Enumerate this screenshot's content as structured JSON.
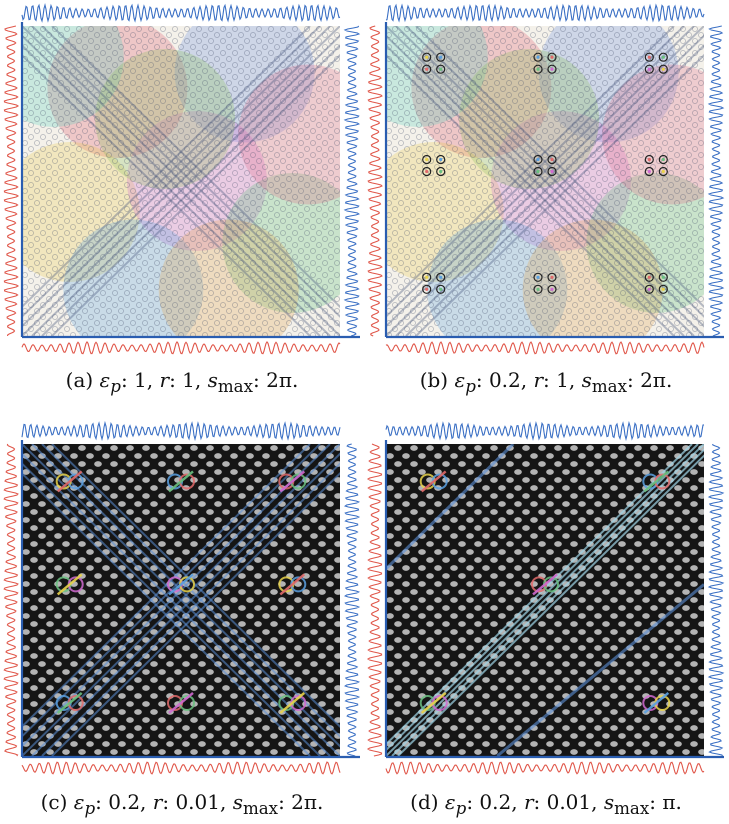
{
  "figure": {
    "panels": [
      {
        "id": "a",
        "style": "color",
        "caption": {
          "prefix": "(a) ",
          "eps_label": "ε",
          "eps_sub": "p",
          "eps_value": ": 1, ",
          "r_label": "r",
          "r_value": ": 1, ",
          "s_label": "s",
          "s_sub": "max",
          "s_value": ": 2π."
        }
      },
      {
        "id": "b",
        "style": "color-nodes",
        "caption": {
          "prefix": "(b) ",
          "eps_label": "ε",
          "eps_sub": "p",
          "eps_value": ": 0.2, ",
          "r_label": "r",
          "r_value": ": 1, ",
          "s_label": "s",
          "s_sub": "max",
          "s_value": ": 2π."
        }
      },
      {
        "id": "c",
        "style": "dark-cross",
        "caption": {
          "prefix": "(c) ",
          "eps_label": "ε",
          "eps_sub": "p",
          "eps_value": ": 0.2, ",
          "r_label": "r",
          "r_value": ": 0.01, ",
          "s_label": "s",
          "s_sub": "max",
          "s_value": ": 2π."
        }
      },
      {
        "id": "d",
        "style": "dark-diag",
        "caption": {
          "prefix": "(d) ",
          "eps_label": "ε",
          "eps_sub": "p",
          "eps_value": ": 0.2, ",
          "r_label": "r",
          "r_value": ": 0.01, ",
          "s_label": "s",
          "s_sub": "max",
          "s_value": ": π."
        }
      }
    ],
    "colors": {
      "signal_top": "#3a6fc4",
      "signal_right": "#3a6fc4",
      "signal_left": "#e0574a",
      "signal_bottom": "#e0574a",
      "axis": "#2a5db0"
    }
  }
}
